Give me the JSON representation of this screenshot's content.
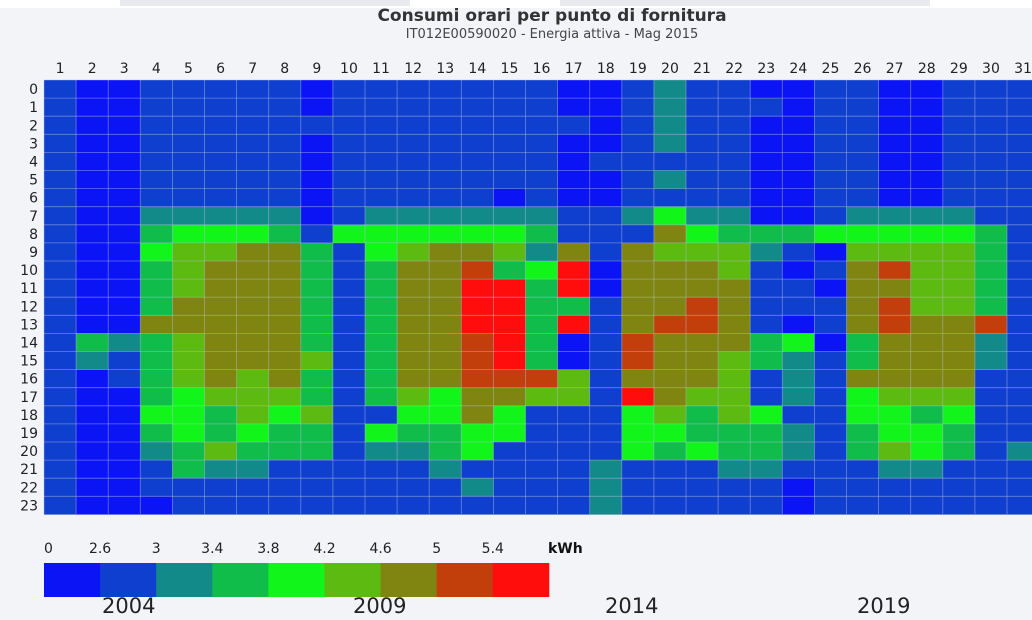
{
  "chart_data": {
    "type": "heatmap",
    "title": "Consumi orari per punto di fornitura",
    "subtitle": "IT012E00590020 - Energia attiva - Mag 2015",
    "x_categories": [
      1,
      2,
      3,
      4,
      5,
      6,
      7,
      8,
      9,
      10,
      11,
      12,
      13,
      14,
      15,
      16,
      17,
      18,
      19,
      20,
      21,
      22,
      23,
      24,
      25,
      26,
      27,
      28,
      29,
      30,
      31
    ],
    "y_categories": [
      0,
      1,
      2,
      3,
      4,
      5,
      6,
      7,
      8,
      9,
      10,
      11,
      12,
      13,
      14,
      15,
      16,
      17,
      18,
      19,
      20,
      21,
      22,
      23
    ],
    "color_scale": {
      "unit": "kWh",
      "thresholds": [
        "0",
        "2.6",
        "3",
        "3.4",
        "3.8",
        "4.2",
        "4.6",
        "5",
        "5.4"
      ],
      "colors": [
        "#0a14f5",
        "#0f3fcf",
        "#138a8a",
        "#10bd4a",
        "#12f51a",
        "#5cba10",
        "#7f8510",
        "#c23e0a",
        "#ff0d0d"
      ]
    },
    "level_index_matrix_rows_by_hour": [
      "1001111101111111001211001100111",
      "1001111101111111001211101100111",
      "1001111111111111101211001100111",
      "1001111101111111001211001100111",
      "1001111101111111011111001100111",
      "1001111101111111001211001100111",
      "1001111101111101001111001100111",
      "1002222201222222112422001222211",
      "1003444314444443111643334444431",
      "1004556631456652616555210555531",
      "1003566631366734806665101675531",
      "1003566631366883806666110665531",
      "1003666631366883316676111675531",
      "1006666631366883816776101676671",
      "1323566631366783017666340366621",
      "1213566651366783017665321366621",
      "1013565631366777516665121666611",
      "1003455531354665518655121455511",
      "1004435451144641114535411443411",
      "1003434331433441114433321344311",
      "1002353331223411114343321354312",
      "1001322111112111121112211122111",
      "1001111111111211121111101111111",
      "1000111111111111121111101111111"
    ],
    "level_index_matrix_note": "each string is one hour row (0-23); each digit is a day column (1-31); digit = color band index into color_scale.colors"
  },
  "legend": {
    "labels": [
      "0",
      "2.6",
      "3",
      "3.4",
      "3.8",
      "4.2",
      "4.6",
      "5",
      "5.4"
    ],
    "unit": "kWh"
  },
  "background_years": [
    "2004",
    "2009",
    "2014",
    "2019"
  ]
}
